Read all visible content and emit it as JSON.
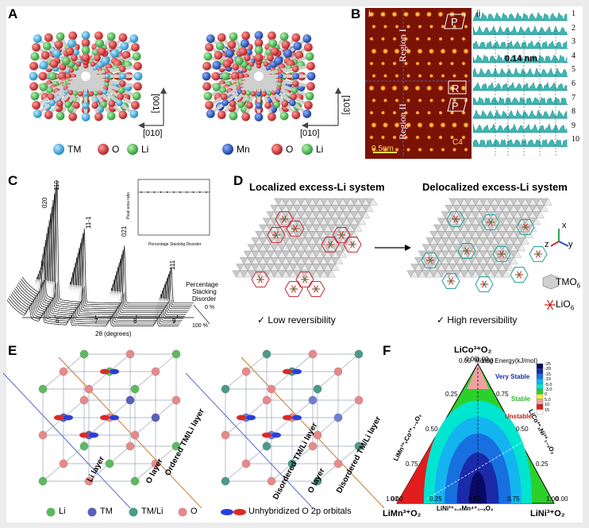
{
  "panel_labels": [
    "A",
    "B",
    "C",
    "D",
    "E",
    "F"
  ],
  "panel_a": {
    "left_axes": {
      "v": "[001]",
      "h": "[010]"
    },
    "right_axes": {
      "v": "[103]",
      "h": "[010]"
    },
    "legend_left": [
      "TM",
      "O",
      "Li"
    ],
    "legend_right": [
      "Mn",
      "O",
      "Li"
    ],
    "colors": {
      "tm": "#2aa8d8",
      "mn": "#1f4fa8",
      "o": "#cc2a2a",
      "li": "#3aa84a"
    }
  },
  "panel_b": {
    "sub_i": "i",
    "sub_ii": "ii",
    "region1": "Region I",
    "region2": "Region II",
    "scale": "0.5nm",
    "corner": "C4",
    "boxes": [
      "P",
      "R",
      "P"
    ],
    "spacing": "0.14 nm",
    "rows": [
      "1",
      "2",
      "3",
      "4",
      "5",
      "6",
      "7",
      "8",
      "9",
      "10"
    ]
  },
  "panel_c": {
    "peaks": [
      "020",
      "110",
      "11-1",
      "021",
      "111"
    ],
    "xlabel": "2θ (degrees)",
    "xticks": [
      "6",
      "7",
      "8",
      "9"
    ],
    "stack_title": [
      "Percentage",
      "Stacking",
      "Disorder"
    ],
    "stack_low": "0 %",
    "stack_high": "100 %",
    "inset_ylabel": "Peak area ratio",
    "inset_xlabel": "Percentage Stacking Disorder",
    "inset_xticks": [
      "0",
      "20",
      "40",
      "60",
      "80",
      "100"
    ]
  },
  "panel_d": {
    "title_left": "Localized excess-Li system",
    "title_right": "Delocalized excess-Li system",
    "caption_left": "✓  Low reversibility",
    "caption_right": "✓  High reversibility",
    "legend_tm": "TMO",
    "legend_tm_sub": "6",
    "legend_li": "LiO",
    "legend_li_sub": "6",
    "axes": {
      "x": "x",
      "y": "y",
      "z": "z"
    }
  },
  "panel_e": {
    "left_labels": [
      "Ordered TM/Li layer",
      "O layer",
      "Li layer"
    ],
    "right_labels": [
      "Disordered TM/Li layer",
      "O layer",
      "Disordered TM/Li layer"
    ],
    "legend": [
      "Li",
      "TM",
      "TM/Li",
      "O",
      "Unhybridized O 2p orbitals"
    ]
  },
  "panel_f": {
    "top_vertex": "LiCo³⁺O₂",
    "left_vertex": "LiMn³⁺O₂",
    "right_vertex": "LiNi³⁺O₂",
    "bottom_edge": "LiNi²⁺₀.₅Mn⁴⁺₁₋ₓO₂",
    "left_edge": "LiMn³⁺ₓCo³⁺₁₋ₓO₂",
    "right_edge": "LiCo³⁺ₓNi³⁺₁₋ₓO₂",
    "legend_title": "Mixing Energy(kJ/mol)",
    "very_stable": "Very Stable",
    "stable": "Stable",
    "unstable": "Unstable",
    "scale_ticks": [
      "-25",
      "-20",
      "-15",
      "-10",
      "-5.0",
      "-3.0",
      "0",
      "5.0",
      "10",
      "15"
    ],
    "left_ticks": [
      "1.00",
      "0.75",
      "0.50",
      "0.25",
      "0.00"
    ],
    "right_ticks": [
      "0.00",
      "0.25",
      "0.50",
      "0.75",
      "1.00"
    ],
    "bottom_ticks": [
      "0.00",
      "0.25",
      "0.50",
      "0.75",
      "1.00"
    ],
    "top_ticks": [
      "0.00",
      "1.00"
    ]
  }
}
